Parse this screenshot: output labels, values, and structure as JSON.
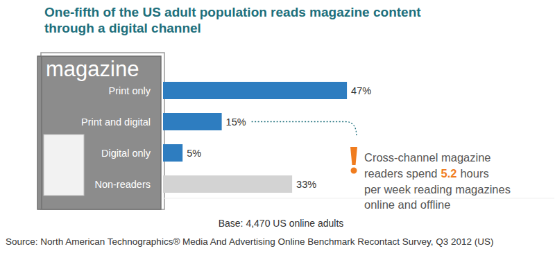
{
  "chart_data": {
    "type": "bar",
    "orientation": "horizontal",
    "title": [
      "One-fifth of the US adult population reads magazine content",
      "through a digital channel"
    ],
    "cover_text": "magazine",
    "categories": [
      "Print only",
      "Print and digital",
      "Digital only",
      "Non-readers"
    ],
    "values": [
      47,
      15,
      5,
      33
    ],
    "value_labels": [
      "47%",
      "15%",
      "5%",
      "33%"
    ],
    "colors": [
      "#2e7dc0",
      "#2e7dc0",
      "#2e7dc0",
      "#d3d3d3"
    ],
    "xlim": [
      0,
      100
    ],
    "data_labels": true,
    "tick_labels": "y",
    "annotation": {
      "line1": "Cross-channel magazine",
      "line2_before": "readers spend",
      "hours": 5.2,
      "line2_after": "hours",
      "line3": "per week reading magazines",
      "line4": "online and offline"
    },
    "note": "Base: 4,470 US online adults",
    "source": "Source: North American Technographics® Media And Advertising Online Benchmark Recontact Survey, Q3 2012 (US)"
  }
}
